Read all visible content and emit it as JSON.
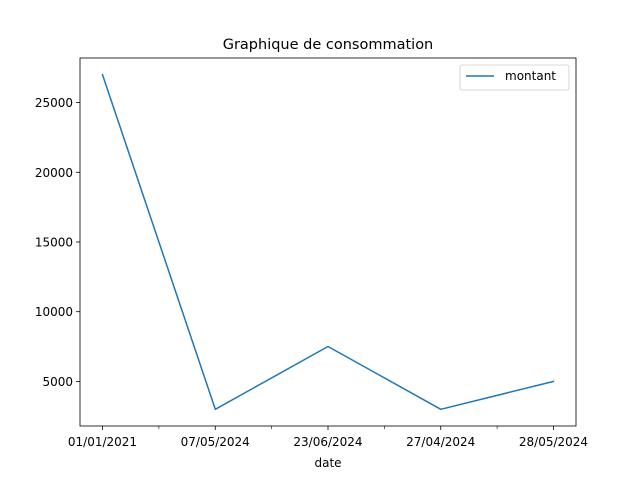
{
  "chart_data": {
    "type": "line",
    "title": "Graphique de consommation",
    "xlabel": "date",
    "ylabel": "",
    "categories": [
      "01/01/2021",
      "07/05/2024",
      "23/06/2024",
      "27/04/2024",
      "28/05/2024"
    ],
    "series": [
      {
        "name": "montant",
        "values": [
          27000,
          3000,
          7500,
          3000,
          5000
        ],
        "color": "#1f77b4"
      }
    ],
    "yticks": [
      5000,
      10000,
      15000,
      20000,
      25000
    ],
    "ylim": [
      1800,
      28200
    ],
    "grid": false,
    "legend": "top-right"
  }
}
